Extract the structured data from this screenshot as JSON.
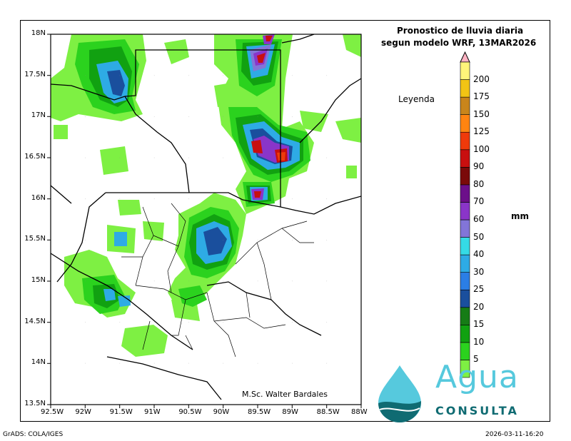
{
  "header": {
    "title_line1": "Pronostico de lluvia diaria",
    "title_line2": "segun modelo WRF,  13MAR2026"
  },
  "legend": {
    "title": "Leyenda",
    "unit": "mm",
    "levels": [
      "5",
      "10",
      "15",
      "20",
      "25",
      "30",
      "40",
      "50",
      "60",
      "70",
      "80",
      "90",
      "100",
      "125",
      "150",
      "175",
      "200"
    ],
    "colors": [
      "#7ef043",
      "#2bd21e",
      "#11a111",
      "#167c16",
      "#1a4f9d",
      "#2b7ee5",
      "#2eabe5",
      "#35dbe6",
      "#8275d8",
      "#8a35c9",
      "#6c0f8a",
      "#7a0a0a",
      "#c80f0f",
      "#ef3a0b",
      "#ff8411",
      "#c9851b",
      "#f2c414",
      "#fff57a"
    ],
    "top_arrow_color": "#ffb3c3"
  },
  "map": {
    "lat_labels": [
      "18N",
      "17.5N",
      "17N",
      "16.5N",
      "16N",
      "15.5N",
      "15N",
      "14.5N",
      "14N",
      "13.5N"
    ],
    "lon_labels": [
      "92.5W",
      "92W",
      "91.5W",
      "91W",
      "90.5W",
      "90W",
      "89.5W",
      "89W",
      "88.5W",
      "88W"
    ],
    "author": "M.Sc. Walter Bardales"
  },
  "brand": {
    "name": "Agua",
    "sub": "CONSULTA",
    "color_main": "#56c9dd",
    "color_dark": "#0f6b72"
  },
  "footer": {
    "left": "GrADS: COLA/IGES",
    "right": "2026-03-11-16:20"
  }
}
